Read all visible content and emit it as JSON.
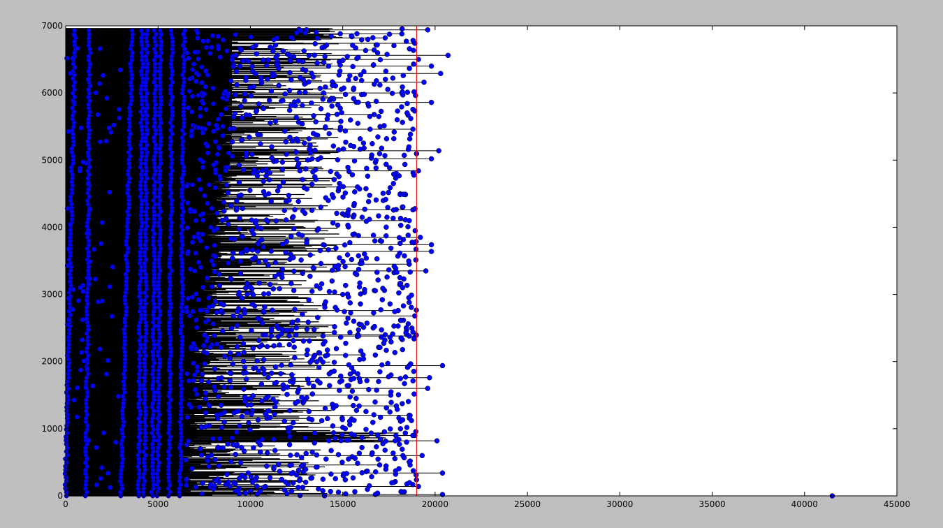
{
  "chart_data": {
    "type": "scatter",
    "title": "",
    "xlabel": "",
    "ylabel": "",
    "xlim": [
      0,
      45000
    ],
    "ylim": [
      0,
      7000
    ],
    "x_ticks": [
      0,
      5000,
      10000,
      15000,
      20000,
      25000,
      30000,
      35000,
      40000,
      45000
    ],
    "x_tick_labels": [
      "0",
      "5000",
      "10000",
      "15000",
      "20000",
      "25000",
      "30000",
      "35000",
      "40000",
      "45000"
    ],
    "y_ticks": [
      0,
      1000,
      2000,
      3000,
      4000,
      5000,
      6000,
      7000
    ],
    "y_tick_labels": [
      "0",
      "1000",
      "2000",
      "3000",
      "4000",
      "5000",
      "6000",
      "7000"
    ],
    "reference_line": {
      "orientation": "vertical",
      "x": 19000,
      "color": "#ff0000"
    },
    "segment_color": "#000000",
    "marker_color": "#0000ff",
    "grid": false,
    "legend": "none",
    "series": [
      {
        "description_values": "horizontal segments from x=0 to an end value, one per row index; blue circle markers at event positions along each row",
        "rows_max_end": [
          {
            "y": 6940,
            "x_end": 19600
          },
          {
            "y": 6880,
            "x_end": 18200
          },
          {
            "y": 6820,
            "x_end": 17300
          },
          {
            "y": 6740,
            "x_end": 18900
          },
          {
            "y": 6640,
            "x_end": 16700
          },
          {
            "y": 6560,
            "x_end": 20700
          },
          {
            "y": 6500,
            "x_end": 19100
          },
          {
            "y": 6400,
            "x_end": 19800
          },
          {
            "y": 6290,
            "x_end": 20300
          },
          {
            "y": 6160,
            "x_end": 19400
          },
          {
            "y": 6000,
            "x_end": 18200
          },
          {
            "y": 5860,
            "x_end": 19800
          },
          {
            "y": 5680,
            "x_end": 16700
          },
          {
            "y": 5460,
            "x_end": 18800
          },
          {
            "y": 5140,
            "x_end": 20200
          },
          {
            "y": 5020,
            "x_end": 19800
          },
          {
            "y": 4840,
            "x_end": 19100
          },
          {
            "y": 4600,
            "x_end": 15800
          },
          {
            "y": 4260,
            "x_end": 18800
          },
          {
            "y": 4100,
            "x_end": 18600
          },
          {
            "y": 3850,
            "x_end": 19200
          },
          {
            "y": 3740,
            "x_end": 19800
          },
          {
            "y": 3640,
            "x_end": 19800
          },
          {
            "y": 3450,
            "x_end": 18600
          },
          {
            "y": 3350,
            "x_end": 19500
          },
          {
            "y": 3000,
            "x_end": 15000
          },
          {
            "y": 2760,
            "x_end": 18000
          },
          {
            "y": 2680,
            "x_end": 18900
          },
          {
            "y": 2400,
            "x_end": 17300
          },
          {
            "y": 2380,
            "x_end": 18600
          },
          {
            "y": 2100,
            "x_end": 16100
          },
          {
            "y": 1940,
            "x_end": 20400
          },
          {
            "y": 1760,
            "x_end": 19700
          },
          {
            "y": 1600,
            "x_end": 19600
          },
          {
            "y": 1500,
            "x_end": 17600
          },
          {
            "y": 1340,
            "x_end": 17900
          },
          {
            "y": 1200,
            "x_end": 18600
          },
          {
            "y": 1020,
            "x_end": 15000
          },
          {
            "y": 900,
            "x_end": 18900
          },
          {
            "y": 820,
            "x_end": 20100
          },
          {
            "y": 600,
            "x_end": 19300
          },
          {
            "y": 460,
            "x_end": 17000
          },
          {
            "y": 340,
            "x_end": 20400
          },
          {
            "y": 140,
            "x_end": 19100
          },
          {
            "y": 20,
            "x_end": 20400
          }
        ],
        "outlier_points": [
          {
            "x": 41500,
            "y": 0
          }
        ]
      }
    ]
  }
}
